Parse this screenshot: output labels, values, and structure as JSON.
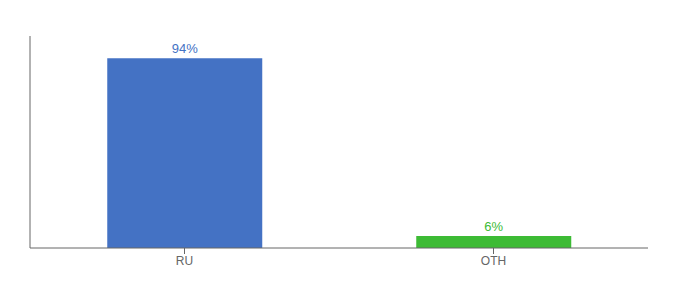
{
  "chart_data": {
    "type": "bar",
    "categories": [
      "RU",
      "OTH"
    ],
    "values": [
      94,
      6
    ],
    "value_labels": [
      "94%",
      "6%"
    ],
    "colors": [
      "#4472c4",
      "#3dbb35"
    ],
    "ylim": [
      0,
      105
    ],
    "data_labels": true,
    "tick_labels": "x",
    "grid": false
  }
}
